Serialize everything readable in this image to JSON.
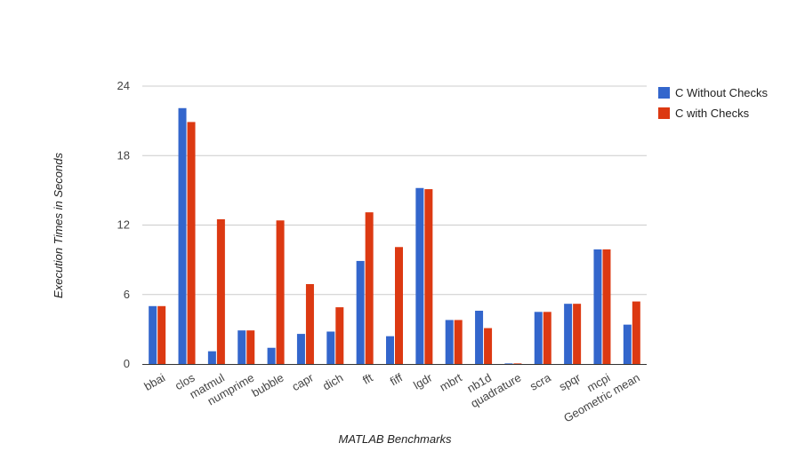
{
  "chart_data": {
    "type": "bar",
    "title": "",
    "xlabel": "MATLAB Benchmarks",
    "ylabel": "Execution Times in Seconds",
    "ylim": [
      0,
      24
    ],
    "yticks": [
      0,
      6,
      12,
      18,
      24
    ],
    "grid": true,
    "legend_position": "right",
    "categories": [
      "bbai",
      "clos",
      "matmul",
      "numprime",
      "bubble",
      "capr",
      "dich",
      "fft",
      "fiff",
      "lgdr",
      "mbrt",
      "nb1d",
      "quadrature",
      "scra",
      "spqr",
      "mcpi",
      "Geometric mean"
    ],
    "series": [
      {
        "name": "C Without Checks",
        "color": "#3366cc",
        "values": [
          5.0,
          22.1,
          1.1,
          2.9,
          1.4,
          2.6,
          2.8,
          8.9,
          2.4,
          15.2,
          3.8,
          4.6,
          0.05,
          4.5,
          5.2,
          9.9,
          3.4
        ]
      },
      {
        "name": "C with Checks",
        "color": "#dc3912",
        "values": [
          5.0,
          20.9,
          12.5,
          2.9,
          12.4,
          6.9,
          4.9,
          13.1,
          10.1,
          15.1,
          3.8,
          3.1,
          0.05,
          4.5,
          5.2,
          9.9,
          5.4
        ]
      }
    ]
  }
}
